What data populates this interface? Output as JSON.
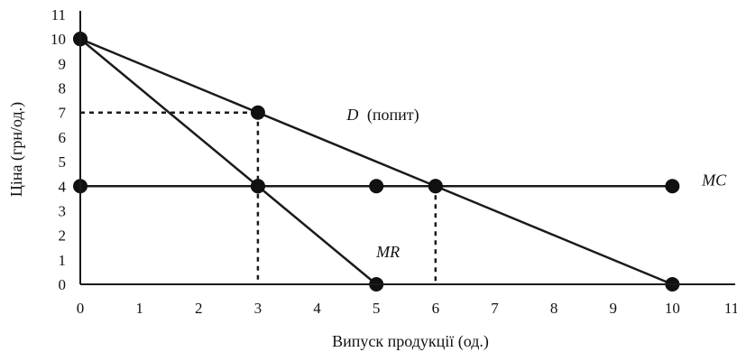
{
  "chart_data": {
    "type": "line",
    "xlabel": "Випуск продукції (од.)",
    "ylabel": "Ціна (грн/од.)",
    "xlim": [
      0,
      11
    ],
    "ylim": [
      0,
      11
    ],
    "x_ticks": [
      "0",
      "1",
      "2",
      "3",
      "4",
      "5",
      "6",
      "7",
      "8",
      "9",
      "10",
      "11"
    ],
    "y_ticks": [
      "0",
      "1",
      "2",
      "3",
      "4",
      "5",
      "6",
      "7",
      "8",
      "9",
      "10",
      "11"
    ],
    "grid": false,
    "series": [
      {
        "label_main": "D",
        "label_rest": "(попит)",
        "points": [
          [
            0,
            10
          ],
          [
            3,
            7
          ],
          [
            6,
            4
          ],
          [
            10,
            0
          ]
        ]
      },
      {
        "label_main": "MR",
        "label_rest": "",
        "points": [
          [
            0,
            10
          ],
          [
            3,
            4
          ],
          [
            5,
            0
          ]
        ]
      },
      {
        "label_main": "MC",
        "label_rest": "",
        "points": [
          [
            0,
            4
          ],
          [
            3,
            4
          ],
          [
            5,
            4
          ],
          [
            6,
            4
          ],
          [
            10,
            4
          ]
        ]
      }
    ],
    "guide_lines": [
      {
        "from": [
          0,
          7
        ],
        "to": [
          3,
          7
        ]
      },
      {
        "from": [
          3,
          7
        ],
        "to": [
          3,
          0
        ]
      },
      {
        "from": [
          6,
          4
        ],
        "to": [
          6,
          0
        ]
      }
    ],
    "colors": {
      "line": "#1a1a1a",
      "marker": "#111111"
    }
  }
}
